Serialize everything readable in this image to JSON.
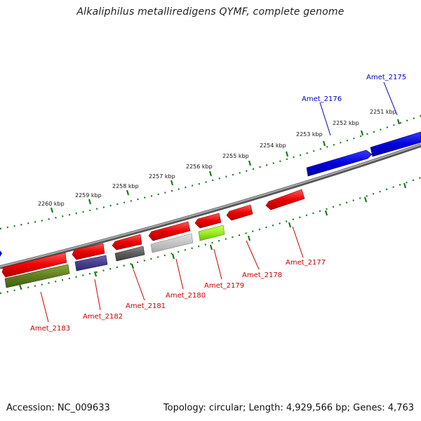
{
  "title": "Alkaliphilus metalliredigens QYMF, complete genome",
  "footer": {
    "accession": "Accession: NC_009633",
    "summary": "Topology: circular; Length: 4,929,566 bp; Genes: 4,763"
  },
  "scale_labels": [
    "2251 kbp",
    "2252 kbp",
    "2253 kbp",
    "2254 kbp",
    "2255 kbp",
    "2256 kbp",
    "2257 kbp",
    "2258 kbp",
    "2259 kbp",
    "2260 kbp"
  ],
  "gene_labels": {
    "amet_2175": "Amet_2175",
    "amet_2176": "Amet_2176",
    "amet_2177": "Amet_2177",
    "amet_2178": "Amet_2178",
    "amet_2179": "Amet_2179",
    "amet_2180": "Amet_2180",
    "amet_2181": "Amet_2181",
    "amet_2182": "Amet_2182",
    "amet_2183": "Amet_2183"
  },
  "colors": {
    "forward_strand": "#0000dd",
    "reverse_strand": "#ee0000",
    "backbone": "#808080",
    "tick": "#1a7a1a",
    "label_forward": "#0000cc",
    "label_reverse": "#cc0000"
  }
}
